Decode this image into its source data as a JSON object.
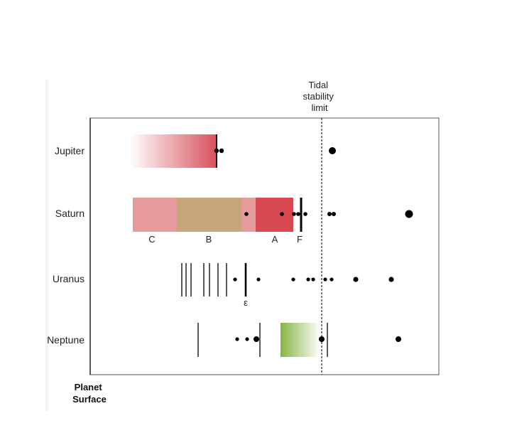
{
  "tidal_label": [
    "Tidal",
    "stability",
    "limit"
  ],
  "axis_label": [
    "Planet",
    "Surface"
  ],
  "planets": [
    {
      "id": "jupiter",
      "name": "Jupiter"
    },
    {
      "id": "saturn",
      "name": "Saturn"
    },
    {
      "id": "uranus",
      "name": "Uranus"
    },
    {
      "id": "neptune",
      "name": "Neptune"
    }
  ],
  "saturn_ring_labels": {
    "c": "C",
    "b": "B",
    "a": "A",
    "f": "F"
  },
  "uranus_ring_label": "ε",
  "colors": {
    "jupiter_ring": "#d8505c",
    "saturn_c_ring": "#e59a9c",
    "saturn_b_ring": "#c9a57a",
    "saturn_cassini": "#e59a9c",
    "saturn_a_ring": "#d64950",
    "neptune_arc": "#86b444",
    "moon": "#000000",
    "tidal_line": "#333333"
  }
}
